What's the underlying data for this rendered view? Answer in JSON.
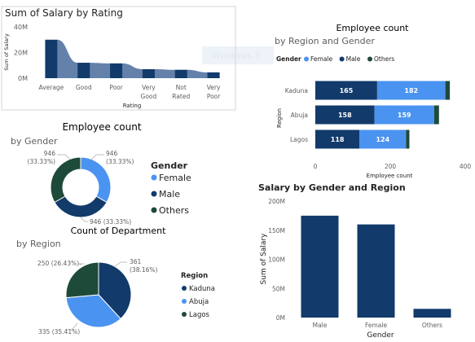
{
  "colors": {
    "female": "#4b93f0",
    "male": "#123a6b",
    "others": "#1e4a3a",
    "ribbon": "#5c7aa6",
    "axis_text": "#605e5c",
    "grid": "#e6e6e6",
    "watermark": "#dfe7f1"
  },
  "watermark": {
    "text": "Windows S"
  },
  "chart_data": [
    {
      "id": "salary-by-rating",
      "type": "bar",
      "title": "Sum of Salary by Rating",
      "xlabel": "Rating",
      "ylabel": "Sum of Salary",
      "ylim": [
        0,
        40
      ],
      "yticks": [
        {
          "v": 0,
          "label": "0M"
        },
        {
          "v": 20,
          "label": "20M"
        },
        {
          "v": 40,
          "label": "40M"
        }
      ],
      "categories": [
        {
          "l1": "Average",
          "l2": ""
        },
        {
          "l1": "Good",
          "l2": ""
        },
        {
          "l1": "Poor",
          "l2": ""
        },
        {
          "l1": "Very",
          "l2": "Good"
        },
        {
          "l1": "Not",
          "l2": "Rated"
        },
        {
          "l1": "Very",
          "l2": "Poor"
        }
      ],
      "values": [
        30,
        12,
        11.5,
        7,
        6.5,
        4.5
      ],
      "grid": false
    },
    {
      "id": "employee-count-by-gender",
      "type": "pie",
      "donut": true,
      "title": "Employee count",
      "subtitle": "by Gender",
      "legend_title": "Gender",
      "legend_position": "right",
      "slices": [
        {
          "name": "Female",
          "value": 946,
          "label": "946",
          "label2": "(33.33%)",
          "color_key": "female"
        },
        {
          "name": "Male",
          "value": 946,
          "label": "946 (33.33%)",
          "label2": "",
          "color_key": "male"
        },
        {
          "name": "Others",
          "value": 946,
          "label": "946",
          "label2": "(33.33%)",
          "color_key": "others"
        }
      ]
    },
    {
      "id": "employee-count-by-region",
      "type": "bar",
      "orientation": "horizontal",
      "stacked": true,
      "title": "Employee count",
      "subtitle": "by Region and Gender",
      "legend_title": "Gender",
      "legend_position": "top-left",
      "xlabel": "Employee count",
      "ylabel": "Region",
      "xlim": [
        0,
        400
      ],
      "xticks": [
        {
          "v": 0,
          "label": "0"
        },
        {
          "v": 200,
          "label": "200"
        },
        {
          "v": 400,
          "label": "400"
        }
      ],
      "categories": [
        "Kaduna",
        "Abuja",
        "Lagos"
      ],
      "series": [
        {
          "name": "Female",
          "color_key": "female",
          "values": [
            182,
            159,
            124
          ]
        },
        {
          "name": "Male",
          "color_key": "male",
          "values": [
            165,
            158,
            118
          ]
        },
        {
          "name": "Others",
          "color_key": "others",
          "values": [
            12,
            13,
            9
          ]
        }
      ],
      "grid": false
    },
    {
      "id": "count-of-department",
      "type": "pie",
      "title": "Count of Department",
      "subtitle": "by Region",
      "legend_title": "Region",
      "legend_position": "right",
      "slices": [
        {
          "name": "Kaduna",
          "value": 361,
          "label": "361",
          "label2": "(38.16%)",
          "color_key": "male"
        },
        {
          "name": "Abuja",
          "value": 335,
          "label": "335 (35.41%)",
          "label2": "",
          "color_key": "female"
        },
        {
          "name": "Lagos",
          "value": 250,
          "label": "250 (26.43%)",
          "label2": "",
          "color_key": "others"
        }
      ]
    },
    {
      "id": "salary-by-gender-region",
      "type": "bar",
      "title": "Salary by Gender and Region",
      "xlabel": "Gender",
      "ylabel": "Sum of Salary",
      "ylim": [
        0,
        200
      ],
      "yticks": [
        {
          "v": 0,
          "label": "0M"
        },
        {
          "v": 50,
          "label": "50M"
        },
        {
          "v": 100,
          "label": "100M"
        },
        {
          "v": 150,
          "label": "150M"
        },
        {
          "v": 200,
          "label": "200M"
        }
      ],
      "categories": [
        "Male",
        "Female",
        "Others"
      ],
      "values": [
        175,
        160,
        15
      ],
      "grid": false
    }
  ]
}
